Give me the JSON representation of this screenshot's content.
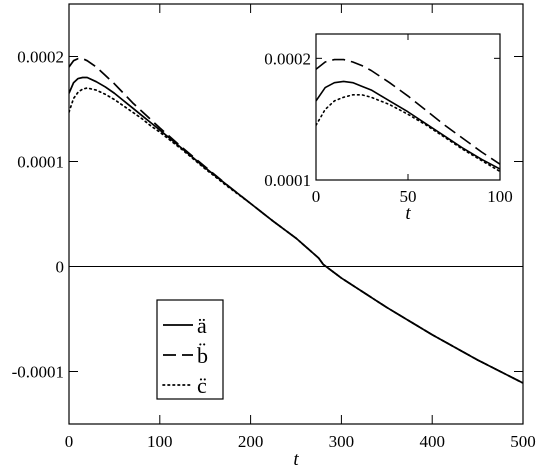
{
  "chart_data": [
    {
      "id": "main",
      "type": "line",
      "xlabel": "t",
      "ylabel": "",
      "xlim": [
        0,
        500
      ],
      "ylim": [
        -0.00015,
        0.00025
      ],
      "xticks": [
        0,
        100,
        200,
        300,
        400,
        500
      ],
      "xtick_labels": [
        "0",
        "100",
        "200",
        "300",
        "400",
        "500"
      ],
      "yticks": [
        -0.0001,
        0,
        0.0001,
        0.0002
      ],
      "ytick_labels": [
        "-0.0001",
        "0",
        "0.0001",
        "0.0002"
      ],
      "zero_line": true,
      "grid": false,
      "legend_position": "lower-left",
      "series": [
        {
          "name": "ä",
          "line_style": "solid",
          "x": [
            0,
            5,
            10,
            15,
            20,
            30,
            40,
            50,
            60,
            70,
            80,
            90,
            100,
            125,
            150,
            175,
            200,
            225,
            250,
            275,
            280,
            300,
            325,
            350,
            375,
            400,
            425,
            450,
            475,
            500
          ],
          "y": [
            0.000165,
            0.000175,
            0.000179,
            0.00018,
            0.00018,
            0.000176,
            0.000171,
            0.000165,
            0.000158,
            0.000151,
            0.000144,
            0.000137,
            0.00013,
            0.000112,
            9.4e-05,
            7.7e-05,
            6e-05,
            4.3e-05,
            2.7e-05,
            8e-06,
            2e-06,
            -1.1e-05,
            -2.5e-05,
            -3.9e-05,
            -5.2e-05,
            -6.5e-05,
            -7.7e-05,
            -8.9e-05,
            -0.0001,
            -0.000111
          ]
        },
        {
          "name": "b̈",
          "line_style": "dashed",
          "x": [
            0,
            5,
            10,
            15,
            20,
            30,
            40,
            50,
            60,
            70,
            80,
            90,
            100,
            125,
            150,
            175,
            200,
            225,
            250,
            275,
            280,
            300,
            325,
            350,
            375,
            400,
            425,
            450,
            475,
            500
          ],
          "y": [
            0.00019,
            0.000196,
            0.000198,
            0.000198,
            0.000196,
            0.00019,
            0.000182,
            0.000174,
            0.000165,
            0.000156,
            0.000148,
            0.00014,
            0.000132,
            0.000113,
            9.5e-05,
            7.7e-05,
            6e-05,
            4.3e-05,
            2.7e-05,
            8e-06,
            2e-06,
            -1.1e-05,
            -2.5e-05,
            -3.9e-05,
            -5.2e-05,
            -6.5e-05,
            -7.7e-05,
            -8.9e-05,
            -0.0001,
            -0.000111
          ]
        },
        {
          "name": "c̈",
          "line_style": "dotted",
          "x": [
            0,
            5,
            10,
            15,
            20,
            30,
            40,
            50,
            60,
            70,
            80,
            90,
            100,
            125,
            150,
            175,
            200,
            225,
            250,
            275,
            280,
            300,
            325,
            350,
            375,
            400,
            425,
            450,
            475,
            500
          ],
          "y": [
            0.000147,
            0.00016,
            0.000166,
            0.000169,
            0.00017,
            0.000168,
            0.000164,
            0.000159,
            0.000153,
            0.000147,
            0.000141,
            0.000134,
            0.000128,
            0.000111,
            9.3e-05,
            7.6e-05,
            6e-05,
            4.3e-05,
            2.7e-05,
            8e-06,
            2e-06,
            -1.1e-05,
            -2.5e-05,
            -3.9e-05,
            -5.2e-05,
            -6.5e-05,
            -7.7e-05,
            -8.9e-05,
            -0.0001,
            -0.000111
          ]
        }
      ]
    },
    {
      "id": "inset",
      "type": "line",
      "xlabel": "t",
      "ylabel": "",
      "xlim": [
        0,
        100
      ],
      "ylim": [
        0.0001,
        0.00022
      ],
      "xticks": [
        0,
        50,
        100
      ],
      "xtick_labels": [
        "0",
        "50",
        "100"
      ],
      "yticks": [
        0.0001,
        0.0002
      ],
      "ytick_labels": [
        "0.0001",
        "0.0002"
      ],
      "grid": false,
      "series": [
        {
          "name": "ä",
          "line_style": "solid",
          "x": [
            0,
            5,
            10,
            15,
            20,
            25,
            30,
            40,
            50,
            60,
            70,
            80,
            90,
            100
          ],
          "y": [
            0.000165,
            0.000176,
            0.00018,
            0.000181,
            0.00018,
            0.000177,
            0.000174,
            0.000165,
            0.000156,
            0.000146,
            0.000136,
            0.000126,
            0.000117,
            0.000109
          ]
        },
        {
          "name": "b̈",
          "line_style": "dashed",
          "x": [
            0,
            5,
            10,
            15,
            20,
            25,
            30,
            40,
            50,
            60,
            70,
            80,
            90,
            100
          ],
          "y": [
            0.000191,
            0.000197,
            0.000199,
            0.000199,
            0.000197,
            0.000194,
            0.00019,
            0.00018,
            0.000169,
            0.000157,
            0.000145,
            0.000134,
            0.000123,
            0.000113
          ]
        },
        {
          "name": "c̈",
          "line_style": "dotted",
          "x": [
            0,
            5,
            10,
            15,
            20,
            25,
            30,
            40,
            50,
            60,
            70,
            80,
            90,
            100
          ],
          "y": [
            0.000145,
            0.000158,
            0.000165,
            0.000168,
            0.00017,
            0.00017,
            0.000168,
            0.000162,
            0.000154,
            0.000145,
            0.000135,
            0.000125,
            0.000116,
            0.000107
          ]
        }
      ]
    }
  ]
}
